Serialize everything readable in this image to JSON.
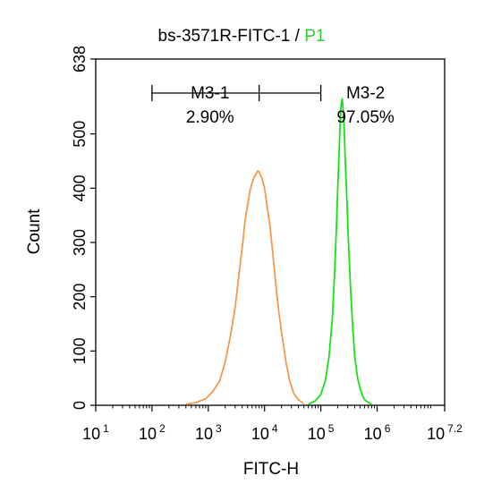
{
  "chart_data": {
    "type": "line",
    "title": "bs-3571R-FITC-1 / ",
    "title_gate": "P1",
    "xlabel": "FITC-H",
    "ylabel": "Count",
    "x_scale": "log",
    "xlim": [
      10,
      15848932
    ],
    "ylim": [
      0,
      638
    ],
    "y_ticks": [
      0,
      100,
      200,
      300,
      400,
      500,
      638
    ],
    "x_ticks": [
      {
        "base": "10",
        "exp": "1"
      },
      {
        "base": "10",
        "exp": "2"
      },
      {
        "base": "10",
        "exp": "3"
      },
      {
        "base": "10",
        "exp": "4"
      },
      {
        "base": "10",
        "exp": "5"
      },
      {
        "base": "10",
        "exp": "6"
      },
      {
        "base": "10",
        "exp": "7.2"
      }
    ],
    "markers": [
      {
        "name": "M3-1",
        "percent": "2.90%",
        "range": [
          100,
          8000
        ]
      },
      {
        "name": "M3-2",
        "percent": "97.05%",
        "range": [
          8000,
          100000
        ]
      }
    ],
    "series": [
      {
        "color": "#f39a4c",
        "points": [
          [
            400,
            2
          ],
          [
            600,
            5
          ],
          [
            900,
            12
          ],
          [
            1200,
            25
          ],
          [
            1600,
            45
          ],
          [
            2000,
            80
          ],
          [
            2500,
            130
          ],
          [
            3000,
            180
          ],
          [
            3500,
            240
          ],
          [
            4000,
            290
          ],
          [
            4500,
            340
          ],
          [
            5000,
            370
          ],
          [
            5500,
            395
          ],
          [
            6000,
            410
          ],
          [
            6500,
            420
          ],
          [
            7000,
            425
          ],
          [
            7500,
            432
          ],
          [
            8000,
            430
          ],
          [
            9000,
            418
          ],
          [
            10000,
            400
          ],
          [
            11000,
            370
          ],
          [
            12500,
            330
          ],
          [
            14000,
            280
          ],
          [
            16000,
            220
          ],
          [
            18000,
            170
          ],
          [
            21000,
            120
          ],
          [
            24000,
            80
          ],
          [
            28000,
            45
          ],
          [
            33000,
            22
          ],
          [
            40000,
            10
          ],
          [
            50000,
            3
          ]
        ]
      },
      {
        "color": "#19e019",
        "points": [
          [
            60000,
            2
          ],
          [
            80000,
            8
          ],
          [
            100000,
            20
          ],
          [
            120000,
            45
          ],
          [
            140000,
            90
          ],
          [
            160000,
            160
          ],
          [
            175000,
            240
          ],
          [
            190000,
            330
          ],
          [
            200000,
            400
          ],
          [
            210000,
            460
          ],
          [
            220000,
            520
          ],
          [
            230000,
            555
          ],
          [
            240000,
            565
          ],
          [
            250000,
            545
          ],
          [
            260000,
            510
          ],
          [
            270000,
            460
          ],
          [
            290000,
            380
          ],
          [
            310000,
            300
          ],
          [
            340000,
            210
          ],
          [
            370000,
            140
          ],
          [
            400000,
            90
          ],
          [
            450000,
            50
          ],
          [
            500000,
            30
          ],
          [
            550000,
            18
          ],
          [
            600000,
            10
          ],
          [
            700000,
            5
          ],
          [
            800000,
            2
          ]
        ]
      }
    ]
  }
}
